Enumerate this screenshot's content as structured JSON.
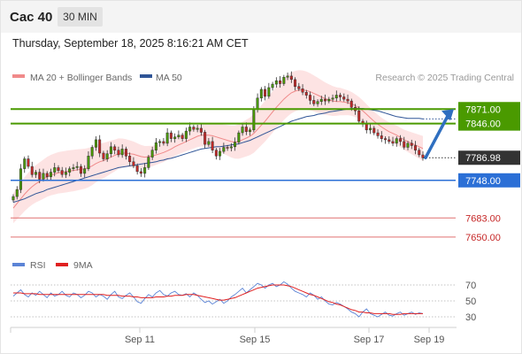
{
  "header": {
    "symbol": "Cac 40",
    "timeframe": "30 MIN",
    "timestamp": "Thursday, September 18, 2025 8:16:21 AM CET"
  },
  "legend": {
    "items": [
      {
        "label": "MA 20 + Bollinger Bands",
        "color": "#f08a8a"
      },
      {
        "label": "MA 50",
        "color": "#2f5597"
      }
    ],
    "credit": "Research © 2025 Trading Central"
  },
  "rsi_legend": {
    "items": [
      {
        "label": "RSI",
        "color": "#5b84d6"
      },
      {
        "label": "9MA",
        "color": "#e02020"
      }
    ]
  },
  "colors": {
    "resistance": "#4a9a00",
    "support": "#2b6fd6",
    "target": "#e07070",
    "current": "#333333",
    "candle_up": "#4a9a00",
    "candle_down": "#c62828",
    "band": "#fcd9d9",
    "ma20": "#f08a8a",
    "ma50": "#2f5597",
    "arrow": "#2f6fc0"
  },
  "chart_data": [
    {
      "type": "candlestick",
      "title": "Cac 40",
      "timeframe": "30 MIN",
      "x_tick_labels": [
        "Sep 11",
        "Sep 15",
        "Sep 17",
        "Sep 19"
      ],
      "ylim": [
        7630,
        7905
      ],
      "price_levels": [
        {
          "value": 7871.0,
          "label": "7871.00",
          "kind": "resistance"
        },
        {
          "value": 7846.0,
          "label": "7846.00",
          "kind": "resistance"
        },
        {
          "value": 7786.98,
          "label": "7786.98",
          "kind": "current"
        },
        {
          "value": 7748.0,
          "label": "7748.00",
          "kind": "support"
        },
        {
          "value": 7683.0,
          "label": "7683.00",
          "kind": "target"
        },
        {
          "value": 7650.0,
          "label": "7650.00",
          "kind": "target"
        }
      ],
      "close": [
        7720,
        7732,
        7768,
        7785,
        7772,
        7758,
        7762,
        7750,
        7760,
        7754,
        7762,
        7770,
        7765,
        7758,
        7762,
        7768,
        7770,
        7772,
        7760,
        7768,
        7790,
        7805,
        7818,
        7795,
        7785,
        7794,
        7806,
        7800,
        7792,
        7802,
        7790,
        7780,
        7773,
        7763,
        7760,
        7770,
        7788,
        7800,
        7813,
        7815,
        7812,
        7830,
        7820,
        7823,
        7826,
        7820,
        7833,
        7840,
        7836,
        7838,
        7831,
        7810,
        7815,
        7800,
        7790,
        7798,
        7805,
        7804,
        7806,
        7814,
        7830,
        7840,
        7832,
        7835,
        7870,
        7890,
        7905,
        7893,
        7908,
        7914,
        7920,
        7915,
        7926,
        7928,
        7922,
        7910,
        7906,
        7900,
        7895,
        7886,
        7880,
        7884,
        7888,
        7885,
        7888,
        7890,
        7895,
        7892,
        7888,
        7885,
        7874,
        7868,
        7850,
        7845,
        7835,
        7838,
        7830,
        7825,
        7820,
        7818,
        7815,
        7812,
        7820,
        7815,
        7805,
        7812,
        7808,
        7800,
        7792,
        7787
      ],
      "ma20": [
        7700,
        7708,
        7716,
        7724,
        7731,
        7737,
        7742,
        7746,
        7750,
        7754,
        7757,
        7759,
        7761,
        7762,
        7763,
        7764,
        7765,
        7766,
        7767,
        7768,
        7770,
        7773,
        7777,
        7780,
        7782,
        7785,
        7788,
        7791,
        7794,
        7795,
        7795,
        7794,
        7793,
        7791,
        7789,
        7788,
        7789,
        7790,
        7792,
        7794,
        7796,
        7799,
        7802,
        7806,
        7809,
        7812,
        7815,
        7818,
        7821,
        7824,
        7826,
        7826,
        7826,
        7825,
        7823,
        7821,
        7819,
        7817,
        7815,
        7814,
        7815,
        7818,
        7821,
        7824,
        7829,
        7836,
        7843,
        7850,
        7858,
        7866,
        7874,
        7881,
        7888,
        7894,
        7899,
        7902,
        7904,
        7904,
        7903,
        7901,
        7898,
        7895,
        7892,
        7889,
        7887,
        7885,
        7884,
        7884,
        7883,
        7882,
        7880,
        7877,
        7873,
        7868,
        7862,
        7856,
        7850,
        7845,
        7840,
        7836,
        7832,
        7829,
        7826,
        7822,
        7818,
        7815,
        7812,
        7809,
        7806,
        7803
      ],
      "ma50": [
        7710,
        7712,
        7714,
        7716,
        7719,
        7722,
        7725,
        7727,
        7729,
        7732,
        7734,
        7736,
        7738,
        7740,
        7742,
        7744,
        7746,
        7748,
        7750,
        7752,
        7754,
        7756,
        7758,
        7760,
        7762,
        7764,
        7766,
        7768,
        7770,
        7771,
        7772,
        7773,
        7774,
        7775,
        7776,
        7777,
        7778,
        7779,
        7780,
        7782,
        7783,
        7785,
        7786,
        7788,
        7790,
        7792,
        7794,
        7796,
        7798,
        7800,
        7802,
        7803,
        7804,
        7805,
        7806,
        7806,
        7807,
        7808,
        7809,
        7810,
        7811,
        7813,
        7815,
        7817,
        7820,
        7823,
        7826,
        7829,
        7832,
        7835,
        7838,
        7841,
        7844,
        7847,
        7850,
        7852,
        7854,
        7856,
        7858,
        7859,
        7860,
        7862,
        7863,
        7864,
        7866,
        7867,
        7868,
        7869,
        7870,
        7871,
        7872,
        7872,
        7872,
        7872,
        7871,
        7870,
        7869,
        7868,
        7866,
        7864,
        7862,
        7860,
        7858,
        7857,
        7856,
        7855,
        7855,
        7855,
        7855,
        7854
      ],
      "projection": {
        "from": 7787,
        "to": 7871
      }
    },
    {
      "type": "line",
      "title": "RSI",
      "y_tick_labels": [
        "70",
        "50",
        "30"
      ],
      "ylim": [
        20,
        80
      ],
      "series": [
        {
          "name": "RSI",
          "values": [
            56,
            60,
            64,
            58,
            55,
            60,
            57,
            62,
            58,
            54,
            60,
            56,
            58,
            62,
            57,
            55,
            60,
            58,
            54,
            57,
            62,
            60,
            55,
            58,
            56,
            52,
            58,
            62,
            55,
            53,
            57,
            60,
            55,
            49,
            47,
            53,
            58,
            55,
            60,
            63,
            58,
            56,
            60,
            62,
            58,
            57,
            59,
            55,
            60,
            57,
            52,
            48,
            50,
            46,
            49,
            52,
            47,
            50,
            55,
            58,
            62,
            66,
            60,
            64,
            68,
            72,
            70,
            66,
            70,
            72,
            68,
            70,
            74,
            71,
            66,
            62,
            60,
            58,
            55,
            60,
            57,
            52,
            55,
            50,
            46,
            45,
            48,
            46,
            43,
            40,
            36,
            34,
            30,
            36,
            40,
            34,
            32,
            30,
            33,
            36,
            32,
            31,
            34,
            36,
            32,
            34,
            36,
            33,
            35,
            34
          ]
        },
        {
          "name": "9MA",
          "values": [
            60,
            60,
            60,
            59,
            59,
            59,
            59,
            58,
            58,
            58,
            58,
            58,
            58,
            58,
            58,
            58,
            58,
            58,
            58,
            58,
            58,
            58,
            58,
            58,
            58,
            57,
            57,
            57,
            57,
            56,
            56,
            56,
            55,
            55,
            54,
            54,
            54,
            54,
            55,
            55,
            55,
            56,
            56,
            57,
            57,
            57,
            58,
            58,
            58,
            57,
            56,
            55,
            54,
            53,
            52,
            51,
            51,
            52,
            53,
            54,
            56,
            58,
            60,
            62,
            64,
            66,
            67,
            68,
            69,
            70,
            70,
            70,
            70,
            69,
            68,
            66,
            64,
            62,
            60,
            58,
            57,
            55,
            53,
            51,
            49,
            48,
            46,
            45,
            43,
            41,
            39,
            38,
            36,
            36,
            35,
            35,
            34,
            34,
            34,
            34,
            34,
            33,
            33,
            33,
            34,
            34,
            34,
            34,
            34,
            34
          ]
        }
      ]
    }
  ]
}
